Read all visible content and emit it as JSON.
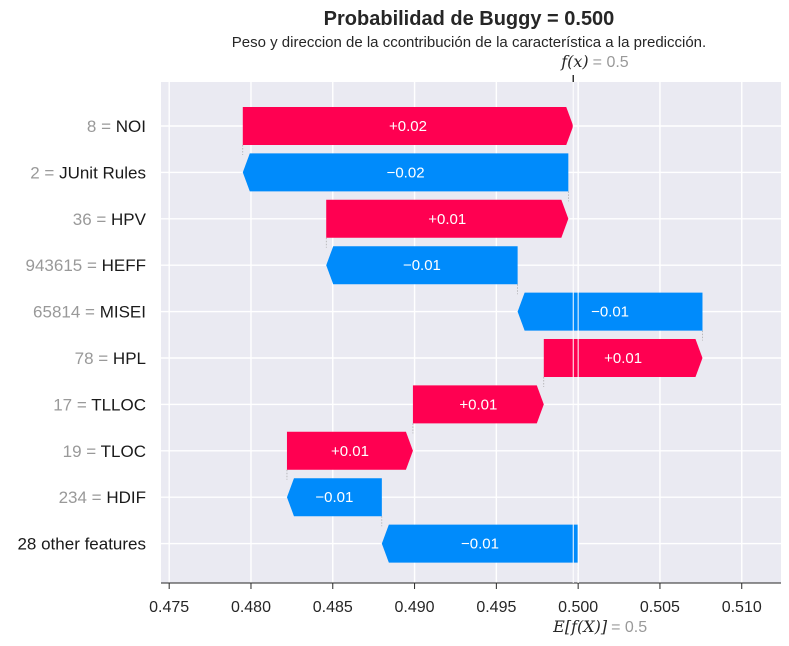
{
  "title": "Probabilidad de Buggy = 0.500",
  "subtitle": "Peso y direccion de la ccontribución de la característica a la predicción.",
  "fx_label": "f(x)",
  "fx_value": "= 0.5",
  "efx_label": "E[f(X)]",
  "efx_value": "= 0.5",
  "colors": {
    "positive": "#ff0051",
    "negative": "#008bfb",
    "plot_bg": "#eaeaf2",
    "grid": "#ffffff"
  },
  "chart_data": {
    "type": "bar",
    "orientation": "horizontal-waterfall",
    "xlim": [
      0.4745,
      0.5124
    ],
    "xticks": [
      0.475,
      0.48,
      0.485,
      0.49,
      0.495,
      0.5,
      0.505,
      0.51
    ],
    "xtick_labels": [
      "0.475",
      "0.480",
      "0.485",
      "0.490",
      "0.495",
      "0.500",
      "0.505",
      "0.510"
    ],
    "fx": 0.4997,
    "efx": 0.5,
    "features": [
      {
        "value": "8",
        "name": "NOI",
        "start": 0.4795,
        "end": 0.4997,
        "label": "+0.02",
        "sign": "positive"
      },
      {
        "value": "2",
        "name": "JUnit Rules",
        "start": 0.4994,
        "end": 0.4795,
        "label": "−0.02",
        "sign": "negative"
      },
      {
        "value": "36",
        "name": "HPV",
        "start": 0.4846,
        "end": 0.4994,
        "label": "+0.01",
        "sign": "positive"
      },
      {
        "value": "943615",
        "name": "HEFF",
        "start": 0.4963,
        "end": 0.4846,
        "label": "−0.01",
        "sign": "negative"
      },
      {
        "value": "65814",
        "name": "MISEI",
        "start": 0.5076,
        "end": 0.4963,
        "label": "−0.01",
        "sign": "negative"
      },
      {
        "value": "78",
        "name": "HPL",
        "start": 0.4979,
        "end": 0.5076,
        "label": "+0.01",
        "sign": "positive"
      },
      {
        "value": "17",
        "name": "TLLOC",
        "start": 0.4899,
        "end": 0.4979,
        "label": "+0.01",
        "sign": "positive"
      },
      {
        "value": "19",
        "name": "TLOC",
        "start": 0.4822,
        "end": 0.4899,
        "label": "+0.01",
        "sign": "positive"
      },
      {
        "value": "234",
        "name": "HDIF",
        "start": 0.488,
        "end": 0.4822,
        "label": "−0.01",
        "sign": "negative"
      },
      {
        "value": "",
        "name": "28 other features",
        "start": 0.5,
        "end": 0.488,
        "label": "−0.01",
        "sign": "negative"
      }
    ]
  }
}
